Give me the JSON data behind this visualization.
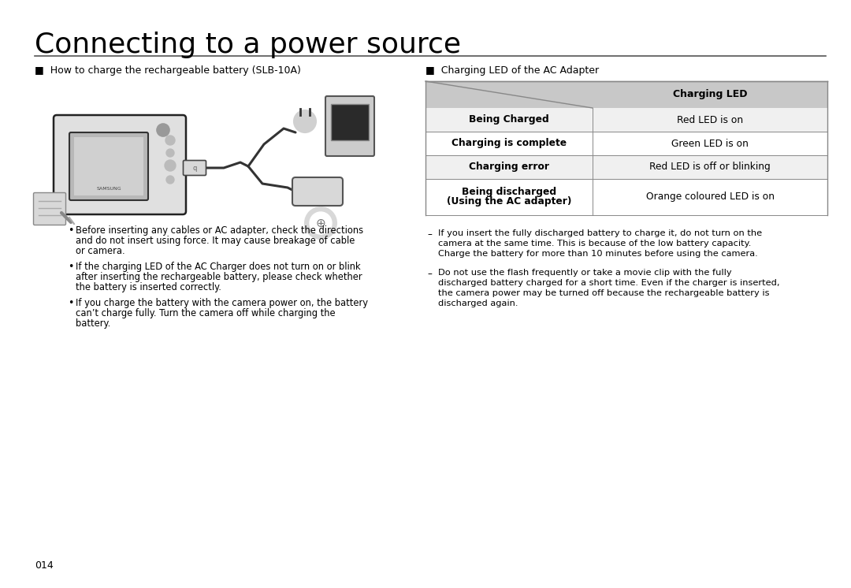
{
  "title": "Connecting to a power source",
  "title_fontsize": 26,
  "page_number": "014",
  "background_color": "#ffffff",
  "left_header": "■  How to charge the rechargeable battery (SLB-10A)",
  "bullets": [
    "Before inserting any cables or AC adapter, check the directions\nand do not insert using force. It may cause breakage of cable\nor camera.",
    "If the charging LED of the AC Charger does not turn on or blink\nafter inserting the rechargeable battery, please check whether\nthe battery is inserted correctly.",
    "If you charge the battery with the camera power on, the battery\ncan’t charge fully. Turn the camera off while charging the\nbattery."
  ],
  "right_header": "■  Charging LED of the AC Adapter",
  "table_rows": [
    [
      "Being Charged",
      "Red LED is on"
    ],
    [
      "Charging is complete",
      "Green LED is on"
    ],
    [
      "Charging error",
      "Red LED is off or blinking"
    ],
    [
      "Being discharged\n(Using the AC adapter)",
      "Orange coloured LED is on"
    ]
  ],
  "table_header_col2": "Charging LED",
  "table_header_bg": "#c8c8c8",
  "table_border_color": "#888888",
  "notes": [
    "If you insert the fully discharged battery to charge it, do not turn on the\ncamera at the same time. This is because of the low battery capacity.\nCharge the battery for more than 10 minutes before using the camera.",
    "Do not use the flash frequently or take a movie clip with the fully\ndischarged battery charged for a short time. Even if the charger is inserted,\nthe camera power may be turned off because the rechargeable battery is\ndischarged again."
  ]
}
